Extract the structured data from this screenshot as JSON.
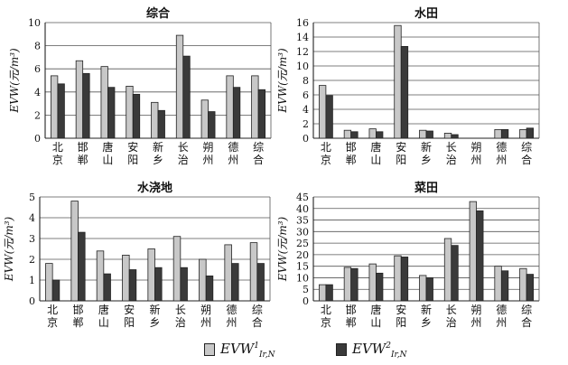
{
  "chart_data": [
    {
      "type": "bar",
      "title": "综合",
      "ylabel": "EVW(元/m³)",
      "ylim": [
        0,
        10
      ],
      "yticks": [
        "0",
        "2",
        "4",
        "6",
        "8",
        "10"
      ],
      "categories": [
        "北京",
        "邯郸",
        "唐山",
        "安阳",
        "新乡",
        "长治",
        "朔州",
        "德州",
        "综合"
      ],
      "series": [
        {
          "values": [
            5.4,
            6.7,
            6.2,
            4.5,
            3.1,
            8.9,
            3.3,
            5.4,
            5.4
          ]
        },
        {
          "values": [
            4.7,
            5.6,
            4.4,
            3.8,
            2.4,
            7.1,
            2.3,
            4.4,
            4.2
          ]
        }
      ],
      "grid": true
    },
    {
      "type": "bar",
      "title": "水田",
      "ylabel": "EVW(元/m³)",
      "ylim": [
        0,
        16
      ],
      "yticks": [
        "0",
        "2",
        "4",
        "6",
        "8",
        "10",
        "12",
        "14",
        "16"
      ],
      "categories": [
        "北京",
        "邯郸",
        "唐山",
        "安阳",
        "新乡",
        "长治",
        "朔州",
        "德州",
        "综合"
      ],
      "series": [
        {
          "values": [
            7.3,
            1.1,
            1.3,
            15.6,
            1.1,
            0.7,
            0,
            1.2,
            1.2
          ]
        },
        {
          "values": [
            5.9,
            0.9,
            0.9,
            12.7,
            1.0,
            0.5,
            0,
            1.2,
            1.4
          ]
        }
      ],
      "grid": true
    },
    {
      "type": "bar",
      "title": "水浇地",
      "ylabel": "EVW(元/m³)",
      "ylim": [
        0,
        5
      ],
      "yticks": [
        "0",
        "1",
        "2",
        "3",
        "4",
        "5"
      ],
      "categories": [
        "北京",
        "邯郸",
        "唐山",
        "安阳",
        "新乡",
        "长治",
        "朔州",
        "德州",
        "综合"
      ],
      "series": [
        {
          "values": [
            1.8,
            4.8,
            2.4,
            2.2,
            2.5,
            3.1,
            2.0,
            2.7,
            2.8
          ]
        },
        {
          "values": [
            1.0,
            3.3,
            1.3,
            1.5,
            1.6,
            1.6,
            1.2,
            1.8,
            1.8
          ]
        }
      ],
      "grid": true
    },
    {
      "type": "bar",
      "title": "菜田",
      "ylabel": "EVW(元/m³)",
      "ylim": [
        0,
        45
      ],
      "yticks": [
        "0",
        "5",
        "10",
        "15",
        "20",
        "25",
        "30",
        "35",
        "40",
        "45"
      ],
      "categories": [
        "北京",
        "邯郸",
        "唐山",
        "安阳",
        "新乡",
        "长治",
        "朔州",
        "德州",
        "综合"
      ],
      "series": [
        {
          "values": [
            7.0,
            14.5,
            16.0,
            19.5,
            11.0,
            27.0,
            43.0,
            15.0,
            14.0
          ]
        },
        {
          "values": [
            7.0,
            14.0,
            12.0,
            19.0,
            10.0,
            24.0,
            39.0,
            13.0,
            11.5
          ]
        }
      ],
      "grid": true
    }
  ],
  "legend": {
    "placement": "bottom",
    "items": [
      {
        "base": "EVW",
        "sup": "1",
        "sub": "Ir,N",
        "color": "#c8c8c8"
      },
      {
        "base": "EVW",
        "sup": "2",
        "sub": "Ir,N",
        "color": "#3a3a3a"
      }
    ]
  }
}
